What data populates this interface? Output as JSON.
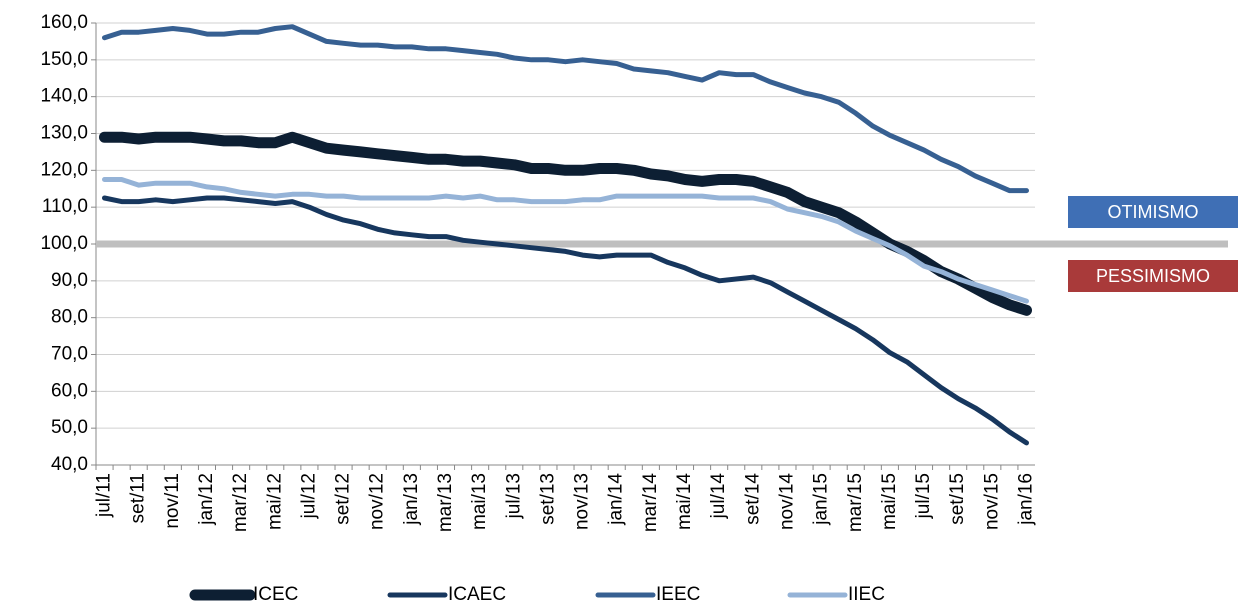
{
  "chart_data": {
    "type": "line",
    "categories": [
      "jul/11",
      null,
      "set/11",
      null,
      "nov/11",
      null,
      "jan/12",
      null,
      "mar/12",
      null,
      "mai/12",
      null,
      "jul/12",
      null,
      "set/12",
      null,
      "nov/12",
      null,
      "jan/13",
      null,
      "mar/13",
      null,
      "mai/13",
      null,
      "jul/13",
      null,
      "set/13",
      null,
      "nov/13",
      null,
      "jan/14",
      null,
      "mar/14",
      null,
      "mai/14",
      null,
      "jul/14",
      null,
      "set/14",
      null,
      "nov/14",
      null,
      "jan/15",
      null,
      "mar/15",
      null,
      "mai/15",
      null,
      "jul/15",
      null,
      "set/15",
      null,
      "nov/15",
      null,
      "jan/16"
    ],
    "series": [
      {
        "name": "ICEC",
        "color": "#0d1f33",
        "values": [
          129,
          129,
          128.5,
          129,
          129,
          129,
          128.5,
          128,
          128,
          127.5,
          127.5,
          129,
          127.5,
          126,
          125.5,
          125,
          124.5,
          124,
          123.5,
          123,
          123,
          122.5,
          122.5,
          122,
          121.5,
          120.5,
          120.5,
          120,
          120,
          120.5,
          120.5,
          120,
          119,
          118.5,
          117.5,
          117,
          117.5,
          117.5,
          117,
          115.5,
          114,
          111.5,
          110,
          108.5,
          106,
          103,
          100,
          98,
          95.5,
          92.5,
          90.5,
          88,
          85.5,
          83.5,
          82
        ]
      },
      {
        "name": "ICAEC",
        "color": "#17375e",
        "values": [
          112.5,
          111.5,
          111.5,
          112,
          111.5,
          112,
          112.5,
          112.5,
          112,
          111.5,
          111,
          111.5,
          110,
          108,
          106.5,
          105.5,
          104,
          103,
          102.5,
          102,
          102,
          101,
          100.5,
          100,
          99.5,
          99,
          98.5,
          98,
          97,
          96.5,
          97,
          97,
          97,
          95,
          93.5,
          91.5,
          90,
          90.5,
          91,
          89.5,
          87,
          84.5,
          82,
          79.5,
          77,
          74,
          70.5,
          68,
          64.5,
          61,
          58,
          55.5,
          52.5,
          49,
          46
        ]
      },
      {
        "name": "IEEC",
        "color": "#376092",
        "values": [
          156,
          157.5,
          157.5,
          158,
          158.5,
          158,
          157,
          157,
          157.5,
          157.5,
          158.5,
          159,
          157,
          155,
          154.5,
          154,
          154,
          153.5,
          153.5,
          153,
          153,
          152.5,
          152,
          151.5,
          150.5,
          150,
          150,
          149.5,
          150,
          149.5,
          149,
          147.5,
          147,
          146.5,
          145.5,
          144.5,
          146.5,
          146,
          146,
          144,
          142.5,
          141,
          140,
          138.5,
          135.5,
          132,
          129.5,
          127.5,
          125.5,
          123,
          121,
          118.5,
          116.5,
          114.5,
          114.5
        ]
      },
      {
        "name": "IIEC",
        "color": "#95b3d7",
        "values": [
          117.5,
          117.5,
          116,
          116.5,
          116.5,
          116.5,
          115.5,
          115,
          114,
          113.5,
          113,
          113.5,
          113.5,
          113,
          113,
          112.5,
          112.5,
          112.5,
          112.5,
          112.5,
          113,
          112.5,
          113,
          112,
          112,
          111.5,
          111.5,
          111.5,
          112,
          112,
          113,
          113,
          113,
          113,
          113,
          113,
          112.5,
          112.5,
          112.5,
          111.5,
          109.5,
          108.5,
          107.5,
          106,
          103.5,
          101.5,
          99.5,
          97,
          94,
          92.5,
          90.5,
          89,
          87.5,
          86,
          84.5
        ]
      }
    ],
    "ylim": [
      40,
      160
    ],
    "yticks": [
      {
        "value": 40,
        "label": "40,0"
      },
      {
        "value": 50,
        "label": "50,0"
      },
      {
        "value": 60,
        "label": "60,0"
      },
      {
        "value": 70,
        "label": "70,0"
      },
      {
        "value": 80,
        "label": "80,0"
      },
      {
        "value": 90,
        "label": "90,0"
      },
      {
        "value": 100,
        "label": "100,0"
      },
      {
        "value": 110,
        "label": "110,0"
      },
      {
        "value": 120,
        "label": "120,0"
      },
      {
        "value": 130,
        "label": "130,0"
      },
      {
        "value": 140,
        "label": "140,0"
      },
      {
        "value": 150,
        "label": "150,0"
      },
      {
        "value": 160,
        "label": "160,0"
      }
    ],
    "grid": true,
    "reference_line": {
      "value": 100,
      "color": "#bfbfbf"
    },
    "annotations": [
      {
        "text": "OTIMISMO",
        "color": "#3f6fb5"
      },
      {
        "text": "PESSIMISMO",
        "color": "#a93a3a"
      }
    ],
    "legend": "bottom"
  }
}
